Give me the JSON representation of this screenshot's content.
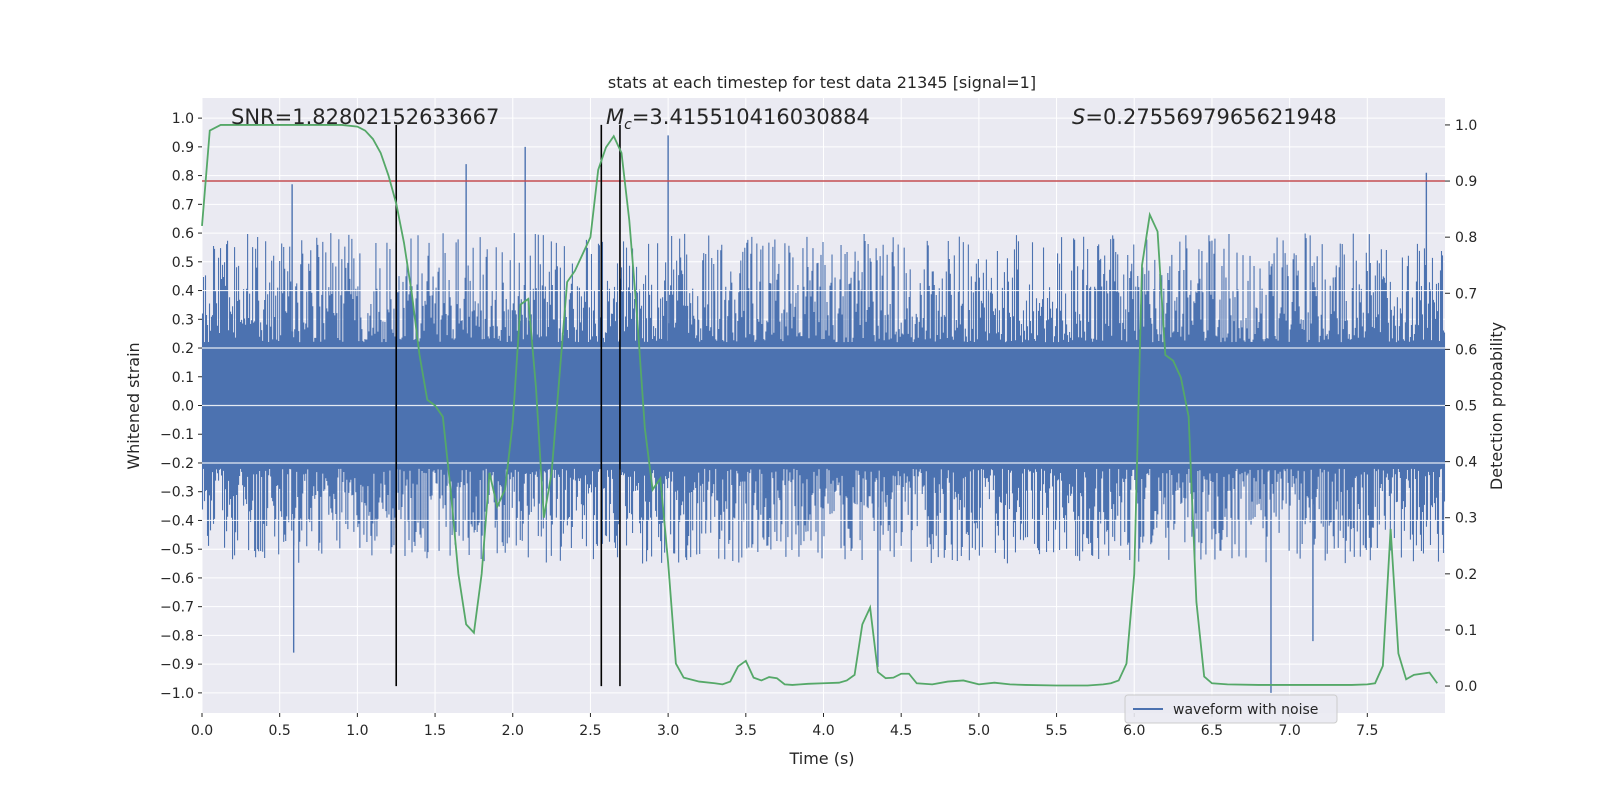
{
  "chart_data": {
    "type": "line",
    "title": "stats at each timestep for test data 21345 [signal=1]",
    "xlabel": "Time (s)",
    "ylabel_left": "Whitened strain",
    "ylabel_right": "Detection probability",
    "xlim": [
      0,
      8
    ],
    "ylim_left": [
      -1.07,
      1.07
    ],
    "ylim_right": [
      -0.048,
      1.048
    ],
    "x_ticks": [
      0.0,
      0.5,
      1.0,
      1.5,
      2.0,
      2.5,
      3.0,
      3.5,
      4.0,
      4.5,
      5.0,
      5.5,
      6.0,
      6.5,
      7.0,
      7.5
    ],
    "x_tick_labels": [
      "0.0",
      "0.5",
      "1.0",
      "1.5",
      "2.0",
      "2.5",
      "3.0",
      "3.5",
      "4.0",
      "4.5",
      "5.0",
      "5.5",
      "6.0",
      "6.5",
      "7.0",
      "7.5"
    ],
    "y_left_ticks": [
      1.0,
      0.9,
      0.8,
      0.7,
      0.6,
      0.5,
      0.4,
      0.3,
      0.2,
      0.1,
      0.0,
      -0.1,
      -0.2,
      -0.3,
      -0.4,
      -0.5,
      -0.6,
      -0.7,
      -0.8,
      -0.9,
      -1.0
    ],
    "y_left_tick_labels": [
      "1.0",
      "0.9",
      "0.8",
      "0.7",
      "0.6",
      "0.5",
      "0.4",
      "0.3",
      "0.2",
      "0.1",
      "0.0",
      "−0.1",
      "−0.2",
      "−0.3",
      "−0.4",
      "−0.5",
      "−0.6",
      "−0.7",
      "−0.8",
      "−0.9",
      "−1.0"
    ],
    "y_right_ticks": [
      1.0,
      0.9,
      0.8,
      0.7,
      0.6,
      0.5,
      0.4,
      0.3,
      0.2,
      0.1,
      0.0
    ],
    "y_right_tick_labels": [
      "1.0",
      "0.9",
      "0.8",
      "0.7",
      "0.6",
      "0.5",
      "0.4",
      "0.3",
      "0.2",
      "0.1",
      "0.0"
    ],
    "grid": true,
    "series": [
      {
        "name": "waveform with noise",
        "axis": "left",
        "color": "#4c72b0",
        "kind": "noise-band",
        "core_range": [
          -0.22,
          0.22
        ],
        "typical_peak_range": [
          -0.55,
          0.6
        ],
        "notable_spikes": [
          {
            "x": 0.58,
            "y": 0.77
          },
          {
            "x": 0.59,
            "y": -0.86
          },
          {
            "x": 1.7,
            "y": 0.84
          },
          {
            "x": 2.08,
            "y": 0.9
          },
          {
            "x": 3.0,
            "y": 0.94
          },
          {
            "x": 4.35,
            "y": -0.91
          },
          {
            "x": 6.88,
            "y": -1.0
          },
          {
            "x": 7.88,
            "y": 0.81
          },
          {
            "x": 7.15,
            "y": -0.82
          }
        ]
      },
      {
        "name": "detection probability",
        "axis": "right",
        "color": "#55a868",
        "x": [
          0.0,
          0.05,
          0.12,
          0.2,
          0.3,
          0.5,
          0.7,
          0.9,
          1.0,
          1.05,
          1.1,
          1.15,
          1.2,
          1.25,
          1.3,
          1.35,
          1.4,
          1.45,
          1.5,
          1.55,
          1.6,
          1.65,
          1.7,
          1.75,
          1.8,
          1.85,
          1.9,
          1.95,
          2.0,
          2.05,
          2.1,
          2.15,
          2.2,
          2.25,
          2.3,
          2.35,
          2.4,
          2.45,
          2.5,
          2.55,
          2.6,
          2.65,
          2.7,
          2.75,
          2.8,
          2.85,
          2.9,
          2.95,
          3.0,
          3.05,
          3.1,
          3.2,
          3.3,
          3.35,
          3.4,
          3.45,
          3.5,
          3.55,
          3.6,
          3.65,
          3.7,
          3.75,
          3.8,
          3.85,
          3.9,
          4.0,
          4.1,
          4.15,
          4.2,
          4.25,
          4.3,
          4.35,
          4.4,
          4.45,
          4.5,
          4.55,
          4.6,
          4.7,
          4.8,
          4.9,
          5.0,
          5.1,
          5.2,
          5.3,
          5.5,
          5.7,
          5.8,
          5.85,
          5.9,
          5.95,
          6.0,
          6.05,
          6.1,
          6.15,
          6.2,
          6.25,
          6.3,
          6.35,
          6.4,
          6.45,
          6.5,
          6.6,
          6.8,
          7.0,
          7.2,
          7.4,
          7.5,
          7.55,
          7.6,
          7.65,
          7.7,
          7.75,
          7.8,
          7.9,
          7.95
        ],
        "y": [
          0.82,
          0.99,
          1.0,
          1.0,
          1.0,
          1.0,
          1.0,
          1.0,
          0.997,
          0.99,
          0.975,
          0.95,
          0.91,
          0.86,
          0.79,
          0.7,
          0.59,
          0.51,
          0.5,
          0.48,
          0.35,
          0.2,
          0.11,
          0.095,
          0.2,
          0.38,
          0.32,
          0.35,
          0.47,
          0.68,
          0.69,
          0.53,
          0.3,
          0.38,
          0.55,
          0.72,
          0.74,
          0.77,
          0.8,
          0.92,
          0.96,
          0.98,
          0.95,
          0.83,
          0.66,
          0.46,
          0.35,
          0.37,
          0.22,
          0.04,
          0.015,
          0.008,
          0.005,
          0.003,
          0.008,
          0.035,
          0.045,
          0.015,
          0.01,
          0.016,
          0.014,
          0.003,
          0.002,
          0.003,
          0.004,
          0.005,
          0.006,
          0.01,
          0.02,
          0.11,
          0.14,
          0.025,
          0.014,
          0.015,
          0.022,
          0.022,
          0.005,
          0.003,
          0.008,
          0.01,
          0.003,
          0.006,
          0.003,
          0.002,
          0.001,
          0.001,
          0.003,
          0.005,
          0.01,
          0.04,
          0.2,
          0.75,
          0.84,
          0.81,
          0.59,
          0.58,
          0.55,
          0.48,
          0.15,
          0.017,
          0.005,
          0.003,
          0.002,
          0.002,
          0.002,
          0.002,
          0.003,
          0.005,
          0.036,
          0.28,
          0.058,
          0.012,
          0.02,
          0.024,
          0.005
        ]
      }
    ],
    "threshold_line": {
      "axis": "right",
      "value": 0.9,
      "color": "#c44e52"
    },
    "vertical_lines": [
      {
        "x": 1.25
      },
      {
        "x": 2.57
      },
      {
        "x": 2.69
      }
    ],
    "vertical_line_top": 1.0,
    "annotations": [
      {
        "text": "SNR=1.8280215263366 7",
        "x": 0.2,
        "y": 0.0
      },
      {
        "text": "M_c=3.415510416030884",
        "x": 2.6,
        "y": 0.0
      },
      {
        "text": "S=0.2755697965621948",
        "x": 5.6,
        "y": 0.0
      }
    ],
    "annotation_labels": {
      "snr": "SNR=1.82802152633667",
      "mc_symbol": "M",
      "mc_sub": "c",
      "mc_value": "=3.415510416030884",
      "s_symbol": "S",
      "s_value": "=0.2755697965621948"
    },
    "legend": {
      "label": "waveform with noise",
      "placement": "lower-right"
    }
  }
}
